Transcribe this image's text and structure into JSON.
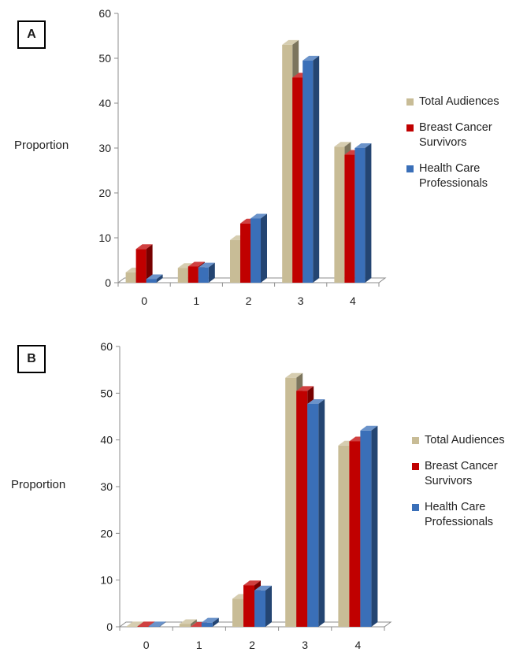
{
  "colors": {
    "total": "#c8bc96",
    "survivors": "#c00000",
    "professionals": "#3a6fb8"
  },
  "chart_data": [
    {
      "type": "bar",
      "panel_label": "A",
      "ylabel": "Proportion",
      "xlabel": "",
      "categories": [
        "0",
        "1",
        "2",
        "3",
        "4"
      ],
      "ylim": [
        0,
        60
      ],
      "yticks": [
        "0",
        "10",
        "20",
        "30",
        "40",
        "50",
        "60"
      ],
      "legend_placement": "right",
      "grid": false,
      "series": [
        {
          "name": "Total Audiences",
          "values": [
            2.3,
            3.3,
            9.5,
            53,
            30.3
          ]
        },
        {
          "name": "Breast Cancer Survivors",
          "values": [
            7.5,
            3.6,
            13.2,
            45.7,
            28.5
          ]
        },
        {
          "name": "Health Care Professionals",
          "values": [
            0.8,
            3.4,
            14.3,
            49.5,
            30
          ]
        }
      ]
    },
    {
      "type": "bar",
      "panel_label": "B",
      "ylabel": "Proportion",
      "xlabel": "",
      "categories": [
        "0",
        "1",
        "2",
        "3",
        "4"
      ],
      "ylim": [
        0,
        60
      ],
      "yticks": [
        "0",
        "10",
        "20",
        "30",
        "40",
        "50",
        "60"
      ],
      "legend_placement": "right",
      "grid": false,
      "series": [
        {
          "name": "Total Audiences",
          "values": [
            0.1,
            0.6,
            6,
            53.3,
            38.8
          ]
        },
        {
          "name": "Breast Cancer Survivors",
          "values": [
            0.1,
            0,
            8.9,
            50.5,
            39.7
          ]
        },
        {
          "name": "Health Care Professionals",
          "values": [
            0.1,
            0.9,
            7.8,
            47.7,
            42
          ]
        }
      ]
    }
  ]
}
